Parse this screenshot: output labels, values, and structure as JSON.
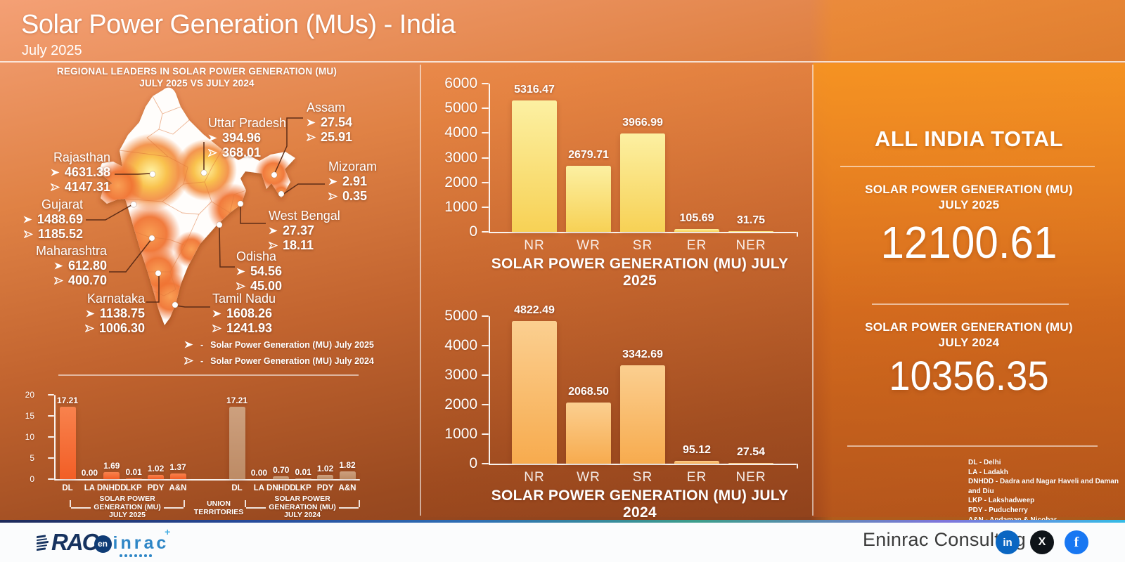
{
  "header": {
    "title": "Solar Power Generation (MUs) - India",
    "subtitle": "July 2025"
  },
  "map_section": {
    "title_line1": "REGIONAL LEADERS IN SOLAR POWER GENERATION (MU)",
    "title_line2": "JULY 2025 VS JULY 2024",
    "legend_dash": "-",
    "legend": [
      {
        "marker": "filled-arrow",
        "label": "Solar Power Generation (MU) July 2025"
      },
      {
        "marker": "outline-arrow",
        "label": "Solar Power Generation (MU) July 2024"
      }
    ],
    "states": [
      {
        "name": "Rajasthan",
        "v2025": "4631.38",
        "v2024": "4147.31"
      },
      {
        "name": "Gujarat",
        "v2025": "1488.69",
        "v2024": "1185.52"
      },
      {
        "name": "Maharashtra",
        "v2025": "612.80",
        "v2024": "400.70"
      },
      {
        "name": "Karnataka",
        "v2025": "1138.75",
        "v2024": "1006.30"
      },
      {
        "name": "Uttar Pradesh",
        "v2025": "394.96",
        "v2024": "368.01"
      },
      {
        "name": "Assam",
        "v2025": "27.54",
        "v2024": "25.91"
      },
      {
        "name": "Mizoram",
        "v2025": "2.91",
        "v2024": "0.35"
      },
      {
        "name": "West Bengal",
        "v2025": "27.37",
        "v2024": "18.11"
      },
      {
        "name": "Odisha",
        "v2025": "54.56",
        "v2024": "45.00"
      },
      {
        "name": "Tamil Nadu",
        "v2025": "1608.26",
        "v2024": "1241.93"
      }
    ]
  },
  "chart_data": [
    {
      "id": "regions_2025",
      "type": "bar",
      "title": "SOLAR POWER GENERATION (MU) JULY 2025",
      "categories": [
        "NR",
        "WR",
        "SR",
        "ER",
        "NER"
      ],
      "values": [
        5316.47,
        2679.71,
        3966.99,
        105.69,
        31.75
      ],
      "ylim": [
        0,
        6000
      ],
      "yticks": [
        0,
        1000,
        2000,
        3000,
        4000,
        5000,
        6000
      ],
      "grid": false,
      "legend_position": "none",
      "bar_color": "#f8d96a"
    },
    {
      "id": "regions_2024",
      "type": "bar",
      "title": "SOLAR POWER GENERATION (MU) JULY 2024",
      "categories": [
        "NR",
        "WR",
        "SR",
        "ER",
        "NER"
      ],
      "values": [
        4822.49,
        2068.5,
        3342.69,
        95.12,
        27.54
      ],
      "ylim": [
        0,
        5000
      ],
      "yticks": [
        0,
        1000,
        2000,
        3000,
        4000,
        5000
      ],
      "grid": false,
      "legend_position": "none",
      "bar_color": "#f8b054"
    },
    {
      "id": "union_territories",
      "type": "grouped-bar",
      "title": "UNION TERRITORIES",
      "categories": [
        "DL",
        "LA",
        "DNHDD",
        "LKP",
        "PDY",
        "A&N"
      ],
      "series": [
        {
          "name": "SOLAR POWER GENERATION (MU) JULY 2025",
          "values": [
            17.21,
            0.0,
            1.69,
            0.01,
            1.02,
            1.37
          ],
          "color": "#f4672e"
        },
        {
          "name": "SOLAR POWER GENERATION (MU) JULY 2024",
          "values": [
            17.21,
            0.0,
            0.7,
            0.01,
            1.02,
            1.82
          ],
          "color": "#c69573"
        }
      ],
      "ylim": [
        0,
        20
      ],
      "yticks": [
        0,
        5,
        10,
        15,
        20
      ],
      "grid": false,
      "captions": {
        "left_l1": "SOLAR POWER",
        "left_l2": "GENERATION (MU)",
        "left_l3": "JULY 2025",
        "center_l1": "UNION",
        "center_l2": "TERRITORIES",
        "right_l1": "SOLAR POWER",
        "right_l2": "GENERATION (MU)",
        "right_l3": "JULY 2024"
      }
    }
  ],
  "totals": {
    "heading": "ALL INDIA TOTAL",
    "items": [
      {
        "label_line1": "SOLAR POWER GENERATION (MU)",
        "label_line2": "JULY 2025",
        "value": "12100.61"
      },
      {
        "label_line1": "SOLAR POWER GENERATION (MU)",
        "label_line2": "JULY 2024",
        "value": "10356.35"
      }
    ]
  },
  "abbreviations": [
    "DL - Delhi",
    "LA - Ladakh",
    "DNHDD - Dadra and Nagar Haveli and Daman and Diu",
    "LKP - Lakshadweep",
    "PDY - Puducherry",
    "A&N - Andaman & Nicobar"
  ],
  "footer": {
    "company": "Eninrac Consulting",
    "logo": {
      "rac": "RAC",
      "circle": "en",
      "rest": "inrac",
      "plus": "+"
    },
    "social": [
      {
        "name": "linkedin",
        "glyph": "in"
      },
      {
        "name": "x",
        "glyph": "X"
      },
      {
        "name": "facebook",
        "glyph": "f"
      }
    ]
  },
  "colors": {
    "background_top_left": "#f09b73",
    "background_bottom_left": "#6e3018",
    "background_right": "#f6951f",
    "bar_yellow_2025": "#f8d96a",
    "bar_orange_2024": "#f8b054",
    "ut_bar_2025": "#f4672e",
    "ut_bar_2024": "#c69573",
    "linkedin_blue": "#0a66c2",
    "facebook_blue": "#1877f2",
    "x_black": "#0f1419",
    "logo_navy": "#16325f",
    "logo_blue": "#2e86c6"
  }
}
